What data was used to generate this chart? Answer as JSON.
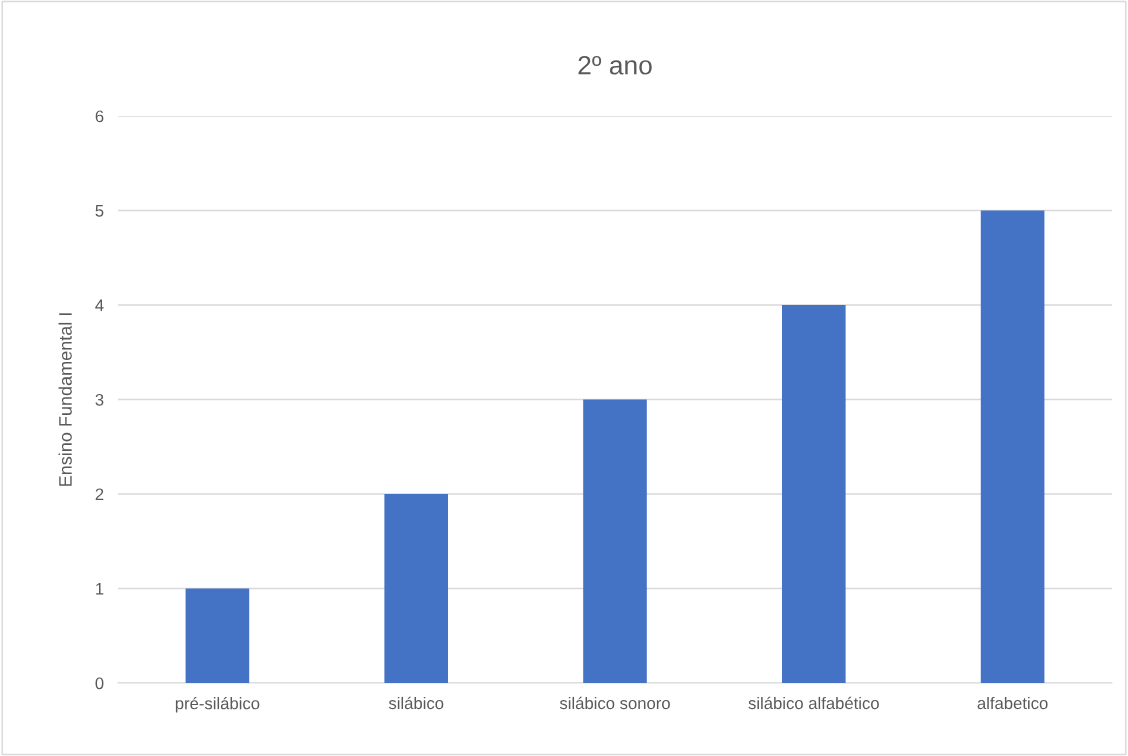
{
  "chart_data": {
    "type": "bar",
    "title": "2º ano",
    "ylabel": "Ensino Fundamental I",
    "categories": [
      "pré-silábico",
      "silábico",
      "silábico sonoro",
      "silábico alfabético",
      "alfabetico"
    ],
    "values": [
      1,
      2,
      3,
      4,
      5
    ],
    "color": "#4472c4",
    "ylim": [
      0,
      6
    ],
    "yticks": [
      0,
      1,
      2,
      3,
      4,
      5,
      6
    ],
    "grid": "y"
  }
}
